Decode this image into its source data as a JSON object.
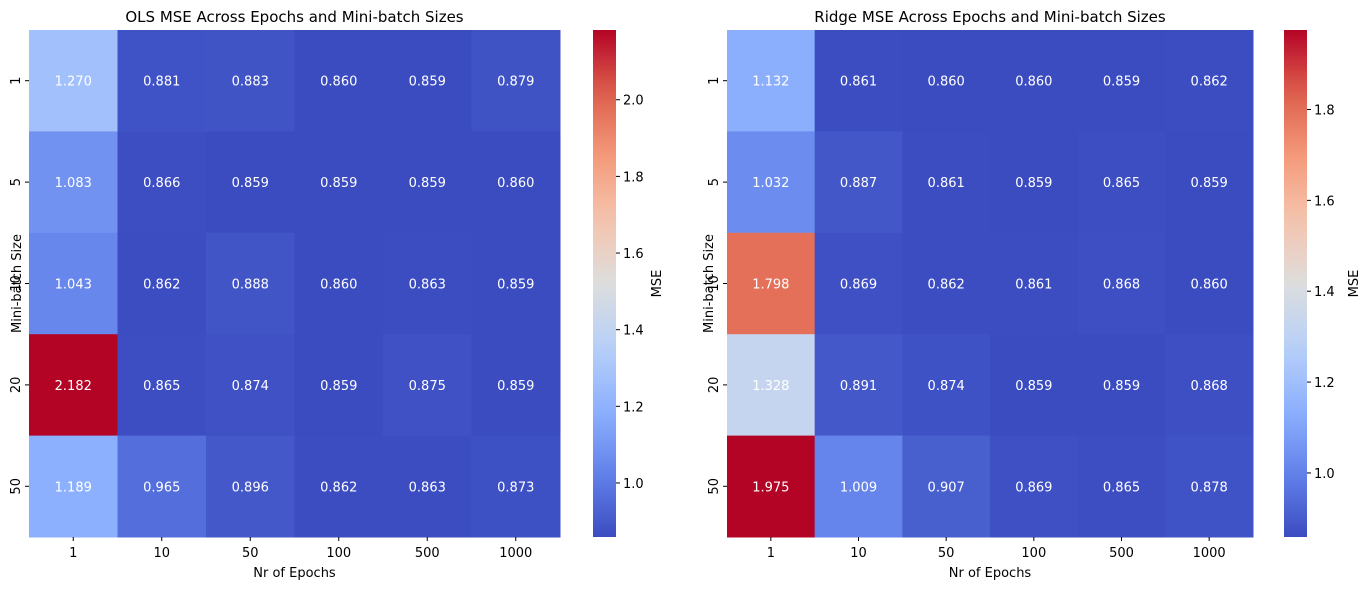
{
  "chart_data": [
    {
      "type": "heatmap",
      "title": "OLS MSE Across Epochs and Mini-batch Sizes",
      "xlabel": "Nr of Epochs",
      "ylabel": "Mini-batch Size",
      "x_categories": [
        "1",
        "10",
        "50",
        "100",
        "500",
        "1000"
      ],
      "y_categories": [
        "1",
        "5",
        "10",
        "20",
        "50"
      ],
      "values": [
        [
          1.27,
          0.881,
          0.883,
          0.86,
          0.859,
          0.879
        ],
        [
          1.083,
          0.866,
          0.859,
          0.859,
          0.859,
          0.86
        ],
        [
          1.043,
          0.862,
          0.888,
          0.86,
          0.863,
          0.859
        ],
        [
          2.182,
          0.865,
          0.874,
          0.859,
          0.875,
          0.859
        ],
        [
          1.189,
          0.965,
          0.896,
          0.862,
          0.863,
          0.873
        ]
      ],
      "labels": [
        [
          "1.270",
          "0.881",
          "0.883",
          "0.860",
          "0.859",
          "0.879"
        ],
        [
          "1.083",
          "0.866",
          "0.859",
          "0.859",
          "0.859",
          "0.860"
        ],
        [
          "1.043",
          "0.862",
          "0.888",
          "0.860",
          "0.863",
          "0.859"
        ],
        [
          "2.182",
          "0.865",
          "0.874",
          "0.859",
          "0.875",
          "0.859"
        ],
        [
          "1.189",
          "0.965",
          "0.896",
          "0.862",
          "0.863",
          "0.873"
        ]
      ],
      "colorbar": {
        "label": "MSE",
        "colormap": "coolwarm",
        "range": [
          0.859,
          2.182
        ],
        "ticks": [
          1.0,
          1.2,
          1.4,
          1.6,
          1.8,
          2.0
        ],
        "tick_labels": [
          "1.0",
          "1.2",
          "1.4",
          "1.6",
          "1.8",
          "2.0"
        ]
      }
    },
    {
      "type": "heatmap",
      "title": "Ridge MSE Across Epochs and Mini-batch Sizes",
      "xlabel": "Nr of Epochs",
      "ylabel": "Mini-batch Size",
      "x_categories": [
        "1",
        "10",
        "50",
        "100",
        "500",
        "1000"
      ],
      "y_categories": [
        "1",
        "5",
        "10",
        "20",
        "50"
      ],
      "values": [
        [
          1.132,
          0.861,
          0.86,
          0.86,
          0.859,
          0.862
        ],
        [
          1.032,
          0.887,
          0.861,
          0.859,
          0.865,
          0.859
        ],
        [
          1.798,
          0.869,
          0.862,
          0.861,
          0.868,
          0.86
        ],
        [
          1.328,
          0.891,
          0.874,
          0.859,
          0.859,
          0.868
        ],
        [
          1.975,
          1.009,
          0.907,
          0.869,
          0.865,
          0.878
        ]
      ],
      "labels": [
        [
          "1.132",
          "0.861",
          "0.860",
          "0.860",
          "0.859",
          "0.862"
        ],
        [
          "1.032",
          "0.887",
          "0.861",
          "0.859",
          "0.865",
          "0.859"
        ],
        [
          "1.798",
          "0.869",
          "0.862",
          "0.861",
          "0.868",
          "0.860"
        ],
        [
          "1.328",
          "0.891",
          "0.874",
          "0.859",
          "0.859",
          "0.868"
        ],
        [
          "1.975",
          "1.009",
          "0.907",
          "0.869",
          "0.865",
          "0.878"
        ]
      ],
      "colorbar": {
        "label": "MSE",
        "colormap": "coolwarm",
        "range": [
          0.859,
          1.975
        ],
        "ticks": [
          1.0,
          1.2,
          1.4,
          1.6,
          1.8
        ],
        "tick_labels": [
          "1.0",
          "1.2",
          "1.4",
          "1.6",
          "1.8"
        ]
      }
    }
  ]
}
